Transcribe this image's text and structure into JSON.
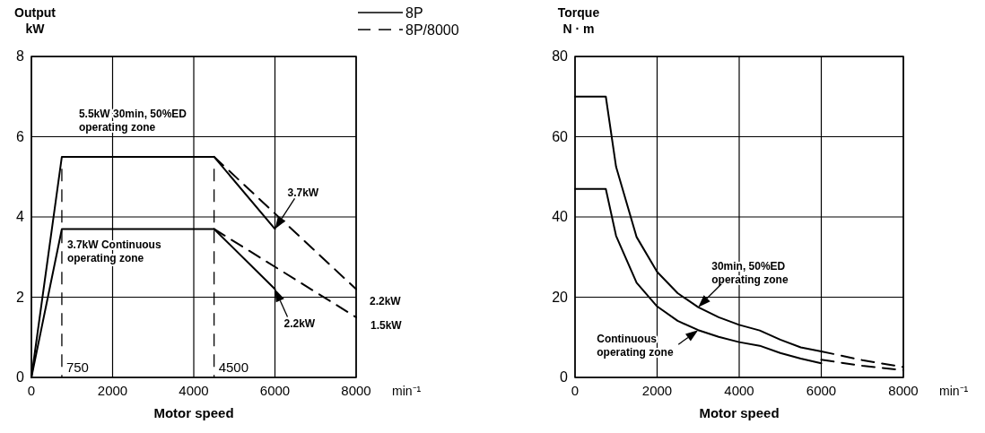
{
  "chart_data": [
    {
      "type": "line",
      "xlabel": "Motor speed",
      "ylabel": "Output\nkW",
      "xlim": [
        0,
        8000
      ],
      "xticks": [
        0,
        2000,
        4000,
        6000,
        8000
      ],
      "ylim": [
        0,
        8
      ],
      "yticks": [
        0,
        2,
        4,
        6,
        8
      ],
      "grid": true,
      "legend": "top right",
      "marker": "none",
      "series": [
        {
          "name": "8P",
          "color": "#000000",
          "line_style": "solid",
          "x": [
            0,
            750,
            4500,
            6000
          ],
          "values": [
            0,
            5.5,
            5.5,
            3.7
          ]
        },
        {
          "color": "#000000",
          "line_style": "solid",
          "x": [
            0,
            750,
            4500,
            6000
          ],
          "values": [
            0,
            3.7,
            3.7,
            2.2
          ]
        },
        {
          "name": "8P/8000",
          "color": "#000000",
          "line_style": "dashed",
          "x": [
            4500,
            8000
          ],
          "values": [
            5.5,
            2.2
          ]
        },
        {
          "color": "#000000",
          "line_style": "dashed",
          "x": [
            4500,
            8000
          ],
          "values": [
            3.7,
            1.5
          ]
        }
      ],
      "ref_lines": [
        {
          "axis": "x",
          "value": 750,
          "label": "750",
          "line_style": "dashed"
        },
        {
          "axis": "x",
          "value": 4500,
          "label": "4500",
          "line_style": "dashed"
        }
      ],
      "annotations": [
        {
          "text": "5.5kW 30min, 50%ED\noperating zone",
          "x": 750,
          "y": 5.5
        },
        {
          "text": "3.7kW Continuous\noperating zone",
          "x": 750,
          "y": 3.7
        },
        {
          "text": "3.7kW",
          "x": 6000,
          "y": 3.7
        },
        {
          "text": "2.2kW",
          "x": 6000,
          "y": 2.2
        },
        {
          "text": "2.2kW",
          "x": 8000,
          "y": 2.2
        },
        {
          "text": "1.5kW",
          "x": 8000,
          "y": 1.5
        },
        "min⁻¹"
      ]
    },
    {
      "type": "line",
      "xlabel": "Motor speed",
      "ylabel": "Torque\nN · m",
      "xlim": [
        0,
        8000
      ],
      "xticks": [
        0,
        2000,
        4000,
        6000,
        8000
      ],
      "ylim": [
        0,
        80
      ],
      "yticks": [
        0,
        20,
        40,
        60,
        80
      ],
      "grid": true,
      "marker": "none",
      "series": [
        {
          "color": "#000000",
          "line_style": "solid",
          "x": [
            0,
            750,
            1000,
            1500,
            2000,
            2500,
            3000,
            3500,
            4000,
            4500,
            5000,
            5500,
            6000
          ],
          "values": [
            70,
            70,
            52.5,
            35,
            26.3,
            21,
            17.5,
            15,
            13.1,
            11.7,
            9.4,
            7.5,
            6.5
          ]
        },
        {
          "color": "#000000",
          "line_style": "solid",
          "x": [
            0,
            750,
            1000,
            1500,
            2000,
            2500,
            3000,
            3500,
            4000,
            4500,
            5000,
            5500,
            6000
          ],
          "values": [
            47,
            47,
            35.3,
            23.6,
            17.7,
            14.1,
            11.8,
            10.1,
            8.8,
            7.9,
            6.1,
            4.7,
            3.5
          ]
        },
        {
          "color": "#000000",
          "line_style": "dashed",
          "x": [
            6000,
            7000,
            8000
          ],
          "values": [
            6.5,
            4.3,
            2.6
          ]
        },
        {
          "color": "#000000",
          "line_style": "dashed",
          "x": [
            6000,
            7000,
            8000
          ],
          "values": [
            4.4,
            2.9,
            1.8
          ]
        }
      ],
      "annotations": [
        {
          "text": "30min, 50%ED\noperating zone",
          "x": 3000,
          "y": 17.5
        },
        {
          "text": "Continuous\noperating zone",
          "x": 3000,
          "y": 11.8
        },
        "min⁻¹"
      ]
    }
  ]
}
